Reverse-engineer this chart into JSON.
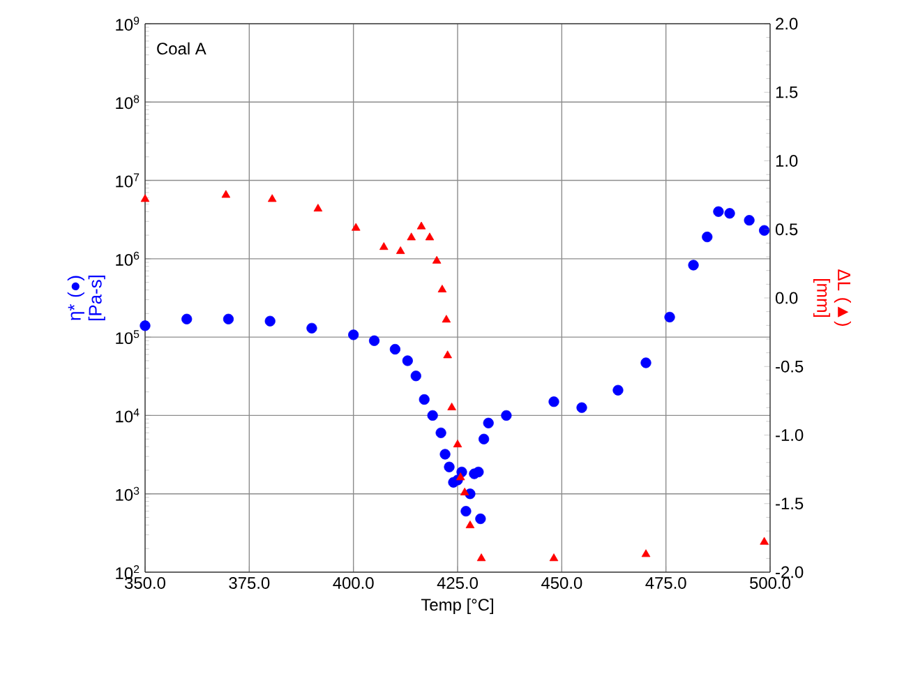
{
  "chart_data": {
    "type": "scatter",
    "xlabel": "Temp [°C]",
    "ylabel": "η* (●) [Pa-s]",
    "y2label": "ΔL (▲) [mm]",
    "annotations": [
      "Coal A"
    ],
    "log": "y",
    "grid": true,
    "xlim": [
      350,
      500
    ],
    "ylim": [
      100,
      1000000000
    ],
    "y2lim": [
      -2,
      2
    ],
    "xticks": [
      {
        "value": 350,
        "label": "350.0"
      },
      {
        "value": 375,
        "label": "375.0"
      },
      {
        "value": 400,
        "label": "400.0"
      },
      {
        "value": 425,
        "label": "425.0"
      },
      {
        "value": 450,
        "label": "450.0"
      },
      {
        "value": 475,
        "label": "475.0"
      },
      {
        "value": 500,
        "label": "500.0"
      }
    ],
    "yticks": [
      {
        "value": 100,
        "label": "10$^{2}$"
      },
      {
        "value": 1000,
        "label": "10$^{3}$"
      },
      {
        "value": 10000,
        "label": "10$^{4}$"
      },
      {
        "value": 100000,
        "label": "10$^{5}$"
      },
      {
        "value": 1000000,
        "label": "10$^{6}$"
      },
      {
        "value": 10000000,
        "label": "10$^{7}$"
      },
      {
        "value": 100000000,
        "label": "10$^{8}$"
      },
      {
        "value": 1000000000,
        "label": "10$^{9}$"
      }
    ],
    "y2ticks": [
      {
        "value": 2,
        "label": "2.0"
      },
      {
        "value": 1.5,
        "label": "1.5"
      },
      {
        "value": 1,
        "label": "1.0"
      },
      {
        "value": 0.5,
        "label": "0.5"
      },
      {
        "value": 0,
        "label": "0.0"
      },
      {
        "value": -0.5,
        "label": "-0.5"
      },
      {
        "value": -1,
        "label": "-1.0"
      },
      {
        "value": -1.5,
        "label": "-1.5"
      },
      {
        "value": -2,
        "label": "-2.0"
      }
    ],
    "series": [
      {
        "color": "#0000ff",
        "marker": "circle",
        "x": [
          350,
          360,
          370,
          380,
          390,
          400,
          405,
          410,
          413,
          415,
          417,
          419,
          421,
          422,
          423,
          424,
          425,
          426,
          427,
          428,
          429,
          430,
          430.5,
          431.3,
          432.4,
          436.7,
          448.1,
          454.8,
          463.5,
          470.2,
          475.9,
          481.6,
          484.9,
          487.6,
          490.3,
          495,
          498.6
        ],
        "values": [
          140000,
          170000,
          170000,
          160000,
          130000,
          107000,
          90000,
          70000,
          50000,
          32000,
          16000,
          10000,
          6000,
          3200,
          2200,
          1400,
          1500,
          1900,
          600,
          1000,
          1800,
          1900,
          480,
          5000,
          8000,
          10000,
          15000,
          12600,
          21000,
          47000,
          180000,
          830000,
          1900000,
          4000000,
          3800000,
          3100000,
          2300000
        ]
      },
      {
        "color": "#ff0000",
        "marker": "triangle",
        "axis": "y2",
        "x": [
          350,
          369.4,
          380.5,
          391.5,
          400.6,
          407.3,
          411.3,
          413.9,
          416.3,
          418.3,
          420,
          421.3,
          422.3,
          422.6,
          423.6,
          425,
          425.7,
          426.7,
          428,
          430.7,
          448.1,
          470.2,
          498.6
        ],
        "values": [
          0.72,
          0.75,
          0.72,
          0.65,
          0.51,
          0.37,
          0.34,
          0.44,
          0.52,
          0.44,
          0.27,
          0.06,
          -0.16,
          -0.42,
          -0.8,
          -1.07,
          -1.31,
          -1.42,
          -1.66,
          -1.9,
          -1.9,
          -1.87,
          -1.78
        ]
      }
    ]
  }
}
